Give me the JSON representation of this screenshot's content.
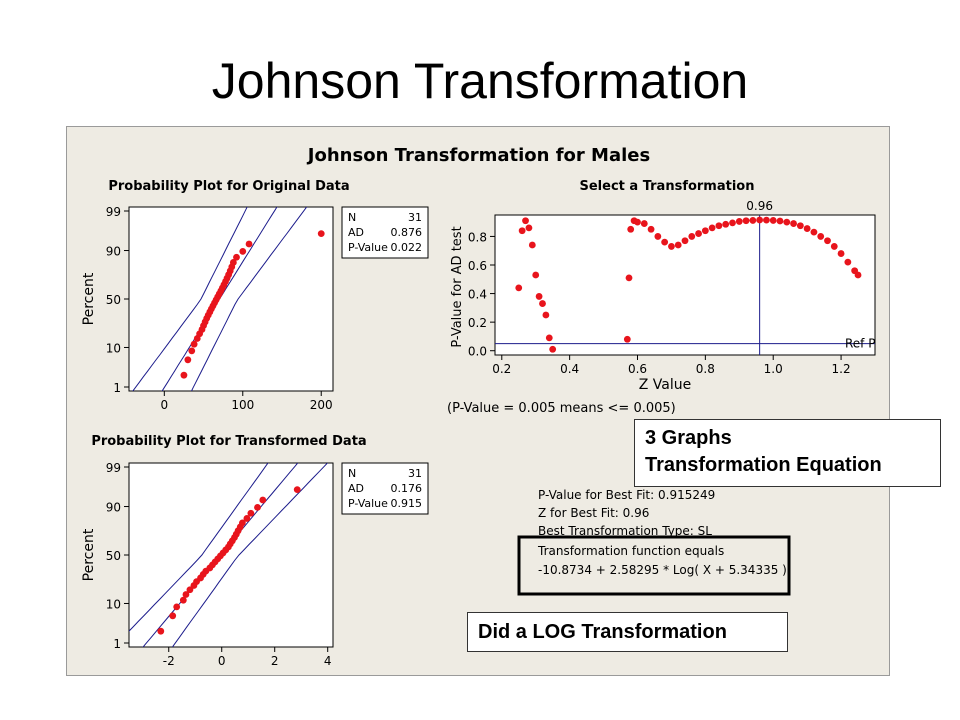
{
  "slide": {
    "title": "Johnson Transformation"
  },
  "panel_title": "Johnson Transformation for Males",
  "chart_data": [
    {
      "type": "scatter",
      "title": "Probability Plot for Original Data",
      "ylabel": "Percent",
      "xticks": [
        "0",
        "100",
        "200"
      ],
      "xtick_values": [
        0,
        100,
        200
      ],
      "xlim": [
        -45,
        215
      ],
      "yticks": [
        "1",
        "10",
        "50",
        "90",
        "99"
      ],
      "yscale": "probability",
      "stats": [
        {
          "label": "N",
          "value": "31"
        },
        {
          "label": "AD",
          "value": "0.876"
        },
        {
          "label": "P-Value",
          "value": "0.022"
        }
      ],
      "points": [
        [
          25,
          2.2
        ],
        [
          30,
          5.4
        ],
        [
          35,
          8.5
        ],
        [
          38,
          11.6
        ],
        [
          42,
          14.8
        ],
        [
          45,
          17.9
        ],
        [
          48,
          21.0
        ],
        [
          50,
          24.1
        ],
        [
          52,
          27.2
        ],
        [
          54,
          30.4
        ],
        [
          56,
          33.5
        ],
        [
          58,
          36.6
        ],
        [
          60,
          39.7
        ],
        [
          62,
          42.8
        ],
        [
          64,
          45.9
        ],
        [
          66,
          49.1
        ],
        [
          68,
          52.2
        ],
        [
          70,
          55.3
        ],
        [
          72,
          58.4
        ],
        [
          74,
          61.5
        ],
        [
          76,
          64.6
        ],
        [
          78,
          67.8
        ],
        [
          80,
          70.9
        ],
        [
          82,
          74.0
        ],
        [
          84,
          77.1
        ],
        [
          86,
          80.2
        ],
        [
          88,
          83.3
        ],
        [
          92,
          86.5
        ],
        [
          100,
          89.6
        ],
        [
          108,
          92.7
        ],
        [
          200,
          95.8
        ]
      ]
    },
    {
      "type": "scatter",
      "title": "Select a Transformation",
      "xlabel": "Z Value",
      "ylabel": "P-Value for AD test",
      "xticks": [
        "0.2",
        "0.4",
        "0.6",
        "0.8",
        "1.0",
        "1.2"
      ],
      "xtick_values": [
        0.2,
        0.4,
        0.6,
        0.8,
        1.0,
        1.2
      ],
      "yticks": [
        "0.0",
        "0.2",
        "0.4",
        "0.6",
        "0.8"
      ],
      "ytick_values": [
        0,
        0.2,
        0.4,
        0.6,
        0.8
      ],
      "xlim": [
        0.18,
        1.3
      ],
      "ylim": [
        -0.03,
        0.95
      ],
      "best_z": 0.96,
      "best_z_label": "0.96",
      "ref_p": 0.05,
      "ref_label": "Ref P",
      "note": "(P-Value = 0.005 means <= 0.005)",
      "points": [
        [
          0.25,
          0.44
        ],
        [
          0.26,
          0.84
        ],
        [
          0.27,
          0.91
        ],
        [
          0.28,
          0.86
        ],
        [
          0.29,
          0.74
        ],
        [
          0.3,
          0.53
        ],
        [
          0.31,
          0.38
        ],
        [
          0.32,
          0.33
        ],
        [
          0.33,
          0.25
        ],
        [
          0.34,
          0.09
        ],
        [
          0.35,
          0.01
        ],
        [
          0.57,
          0.08
        ],
        [
          0.575,
          0.51
        ],
        [
          0.58,
          0.85
        ],
        [
          0.59,
          0.91
        ],
        [
          0.6,
          0.9
        ],
        [
          0.62,
          0.89
        ],
        [
          0.64,
          0.85
        ],
        [
          0.66,
          0.8
        ],
        [
          0.68,
          0.76
        ],
        [
          0.7,
          0.73
        ],
        [
          0.72,
          0.74
        ],
        [
          0.74,
          0.77
        ],
        [
          0.76,
          0.8
        ],
        [
          0.78,
          0.82
        ],
        [
          0.8,
          0.84
        ],
        [
          0.82,
          0.86
        ],
        [
          0.84,
          0.875
        ],
        [
          0.86,
          0.885
        ],
        [
          0.88,
          0.895
        ],
        [
          0.9,
          0.905
        ],
        [
          0.92,
          0.91
        ],
        [
          0.94,
          0.912
        ],
        [
          0.96,
          0.915
        ],
        [
          0.98,
          0.914
        ],
        [
          1.0,
          0.912
        ],
        [
          1.02,
          0.908
        ],
        [
          1.04,
          0.9
        ],
        [
          1.06,
          0.89
        ],
        [
          1.08,
          0.875
        ],
        [
          1.1,
          0.855
        ],
        [
          1.12,
          0.83
        ],
        [
          1.14,
          0.8
        ],
        [
          1.16,
          0.77
        ],
        [
          1.18,
          0.73
        ],
        [
          1.2,
          0.68
        ],
        [
          1.22,
          0.62
        ],
        [
          1.24,
          0.56
        ],
        [
          1.25,
          0.53
        ]
      ]
    },
    {
      "type": "scatter",
      "title": "Probability Plot for Transformed Data",
      "ylabel": "Percent",
      "xticks": [
        "-2",
        "0",
        "2",
        "4"
      ],
      "xtick_values": [
        -2,
        0,
        2,
        4
      ],
      "xlim": [
        -3.5,
        4.2
      ],
      "yticks": [
        "1",
        "10",
        "50",
        "90",
        "99"
      ],
      "yscale": "probability",
      "stats": [
        {
          "label": "N",
          "value": "31"
        },
        {
          "label": "AD",
          "value": "0.176"
        },
        {
          "label": "P-Value",
          "value": "0.915"
        }
      ],
      "points": [
        [
          -2.3,
          2.2
        ],
        [
          -1.85,
          5.4
        ],
        [
          -1.7,
          8.5
        ],
        [
          -1.45,
          11.6
        ],
        [
          -1.35,
          14.8
        ],
        [
          -1.2,
          17.9
        ],
        [
          -1.05,
          21.0
        ],
        [
          -0.95,
          24.1
        ],
        [
          -0.8,
          27.2
        ],
        [
          -0.7,
          30.4
        ],
        [
          -0.6,
          33.5
        ],
        [
          -0.45,
          36.6
        ],
        [
          -0.35,
          39.7
        ],
        [
          -0.25,
          42.8
        ],
        [
          -0.15,
          45.9
        ],
        [
          -0.05,
          49.1
        ],
        [
          0.05,
          52.2
        ],
        [
          0.15,
          55.3
        ],
        [
          0.25,
          58.4
        ],
        [
          0.32,
          61.5
        ],
        [
          0.4,
          64.6
        ],
        [
          0.48,
          67.8
        ],
        [
          0.55,
          70.9
        ],
        [
          0.62,
          74.0
        ],
        [
          0.7,
          77.1
        ],
        [
          0.78,
          80.2
        ],
        [
          0.95,
          83.3
        ],
        [
          1.1,
          86.5
        ],
        [
          1.35,
          89.6
        ],
        [
          1.55,
          92.7
        ],
        [
          2.85,
          95.8
        ]
      ]
    }
  ],
  "fit_summary": {
    "p_value_line": "P-Value for Best Fit: 0.915249",
    "z_line": "Z for Best Fit: 0.96",
    "type_line": "Best Transformation Type: SL",
    "function_label": "Transformation function equals",
    "function_eq": "-10.8734 + 2.58295 * Log( X + 5.34335 )"
  },
  "callouts": {
    "graphs_line1": "3 Graphs",
    "graphs_line2": "Transformation Equation",
    "log": "Did a LOG Transformation"
  },
  "colors": {
    "marker": "#e8141c",
    "line": "#1c1c8c",
    "panel": "#eeebe3"
  }
}
